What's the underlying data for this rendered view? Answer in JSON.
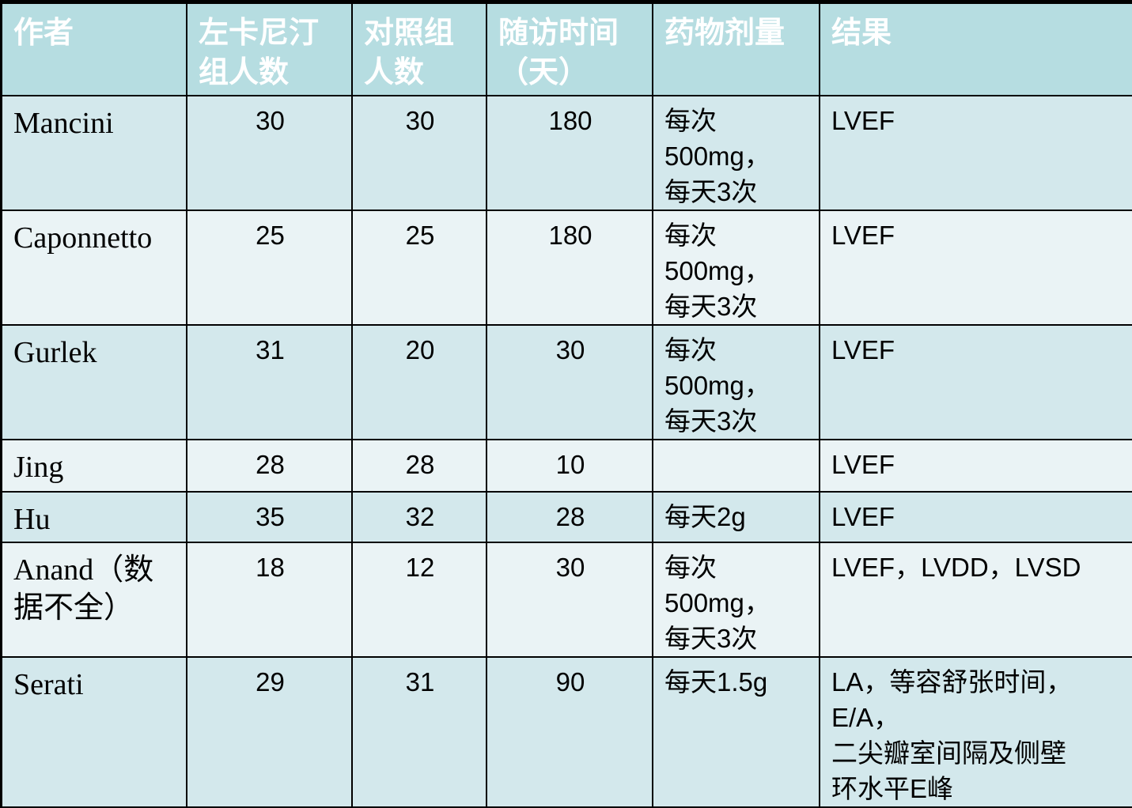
{
  "table": {
    "header": [
      "作者",
      "左卡尼汀组人数",
      "对照组人数",
      "随访时间\n（天）",
      "药物剂量",
      "结果"
    ],
    "rows": [
      [
        "Mancini",
        "30",
        "30",
        "180",
        "每次500mg，\n每天3次",
        "LVEF"
      ],
      [
        "Caponnetto",
        "25",
        "25",
        "180",
        "每次500mg，\n每天3次",
        "LVEF"
      ],
      [
        "Gurlek",
        "31",
        "20",
        "30",
        "每次500mg，\n每天3次",
        "LVEF"
      ],
      [
        "Jing",
        "28",
        "28",
        "10",
        "",
        "LVEF"
      ],
      [
        "Hu",
        "35",
        "32",
        "28",
        "每天2g",
        "LVEF"
      ],
      [
        "Anand（数\n据不全）",
        "18",
        "12",
        "30",
        "每次500mg，\n每天3次",
        "LVEF，LVDD，LVSD"
      ],
      [
        "Serati",
        "29",
        "31",
        "90",
        "每天1.5g",
        "LA，等容舒张时间，E/A，\n二尖瓣室间隔及侧壁\n环水平E峰"
      ]
    ]
  }
}
